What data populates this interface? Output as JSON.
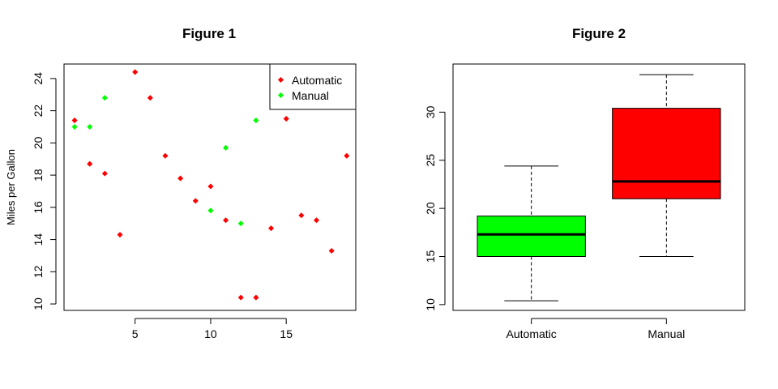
{
  "chart_data": [
    {
      "type": "scatter",
      "title": "Figure 1",
      "xlabel": "",
      "ylabel": "Miles per Gallon",
      "xlim": [
        0.3,
        19.6
      ],
      "ylim": [
        9.6,
        24.9
      ],
      "xticks": [
        5,
        10,
        15
      ],
      "yticks": [
        10,
        12,
        14,
        16,
        18,
        20,
        22,
        24
      ],
      "legend": {
        "position": "top-right",
        "entries": [
          {
            "label": "Automatic",
            "color": "#ff0000"
          },
          {
            "label": "Manual",
            "color": "#00ff00"
          }
        ]
      },
      "series": [
        {
          "name": "Automatic",
          "color": "#ff0000",
          "points": [
            {
              "x": 1,
              "y": 21.4
            },
            {
              "x": 2,
              "y": 18.7
            },
            {
              "x": 3,
              "y": 18.1
            },
            {
              "x": 4,
              "y": 14.3
            },
            {
              "x": 5,
              "y": 24.4
            },
            {
              "x": 6,
              "y": 22.8
            },
            {
              "x": 7,
              "y": 19.2
            },
            {
              "x": 8,
              "y": 17.8
            },
            {
              "x": 9,
              "y": 16.4
            },
            {
              "x": 10,
              "y": 17.3
            },
            {
              "x": 11,
              "y": 15.2
            },
            {
              "x": 12,
              "y": 10.4
            },
            {
              "x": 13,
              "y": 10.4
            },
            {
              "x": 14,
              "y": 14.7
            },
            {
              "x": 15,
              "y": 21.5
            },
            {
              "x": 16,
              "y": 15.5
            },
            {
              "x": 17,
              "y": 15.2
            },
            {
              "x": 18,
              "y": 13.3
            },
            {
              "x": 19,
              "y": 19.2
            }
          ]
        },
        {
          "name": "Manual",
          "color": "#00ff00",
          "points": [
            {
              "x": 1,
              "y": 21.0
            },
            {
              "x": 2,
              "y": 21.0
            },
            {
              "x": 3,
              "y": 22.8
            },
            {
              "x": 10,
              "y": 15.8
            },
            {
              "x": 11,
              "y": 19.7
            },
            {
              "x": 12,
              "y": 15.0
            },
            {
              "x": 13,
              "y": 21.4
            }
          ]
        }
      ]
    },
    {
      "type": "box",
      "title": "Figure 2",
      "xlabel": "",
      "ylabel": "",
      "ylim": [
        9.4,
        35.0
      ],
      "yticks": [
        10,
        15,
        20,
        25,
        30
      ],
      "categories": [
        "Automatic",
        "Manual"
      ],
      "boxes": [
        {
          "label": "Automatic",
          "color": "#00ff00",
          "min": 10.4,
          "q1": 15.0,
          "median": 17.3,
          "q3": 19.2,
          "max": 24.4
        },
        {
          "label": "Manual",
          "color": "#ff0000",
          "min": 15.0,
          "q1": 21.0,
          "median": 22.8,
          "q3": 30.4,
          "max": 33.9
        }
      ]
    }
  ]
}
